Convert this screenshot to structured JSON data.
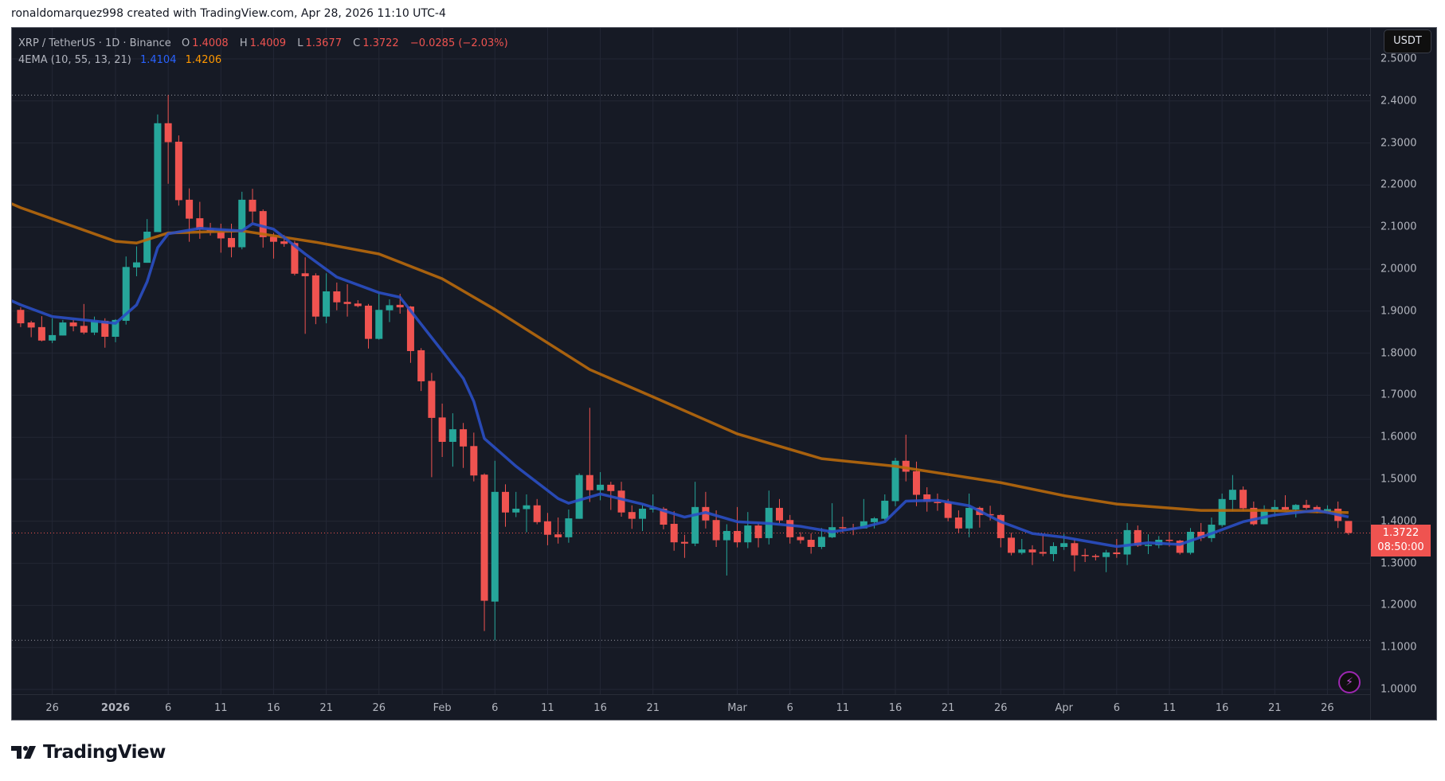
{
  "credit": "ronaldomarquez998 created with TradingView.com, Apr 28, 2026 11:10 UTC-4",
  "legend": {
    "symbol": "XRP / TetherUS · 1D · Binance",
    "o_label": "O",
    "o": "1.4008",
    "h_label": "H",
    "h": "1.4009",
    "l_label": "L",
    "l": "1.3677",
    "c_label": "C",
    "c": "1.3722",
    "change": "−0.0285 (−2.03%)",
    "indicator": "4EMA (10, 55, 13, 21)",
    "ema_fast_value": "1.4104",
    "ema_slow_value": "1.4206"
  },
  "price_axis": {
    "unit": "USDT",
    "ticks": [
      "1.0000",
      "1.1000",
      "1.2000",
      "1.3000",
      "1.4000",
      "1.5000",
      "1.6000",
      "1.7000",
      "1.8000",
      "1.9000",
      "2.0000",
      "2.1000",
      "2.2000",
      "2.3000",
      "2.4000",
      "2.5000"
    ],
    "last_price": "1.3722",
    "countdown": "08:50:00"
  },
  "branding": {
    "logo_text": "TradingView"
  },
  "colors": {
    "up": "#26a69a",
    "down": "#ef5350",
    "ema_fast": "#2a4fc4",
    "ema_slow": "#b8690c",
    "background": "#161a25",
    "grid": "#232735"
  },
  "icons": {
    "alert": "lightning-bolt-icon",
    "logo": "tradingview-logo-icon"
  },
  "chart_data": {
    "type": "candlestick",
    "title": "XRP / TetherUS · 1D · Binance",
    "ylim": [
      0.989,
      2.574
    ],
    "grid": true,
    "x_ticks": [
      {
        "label": "26",
        "date": "2025-12-26"
      },
      {
        "label": "2026",
        "date": "2026-01-01",
        "bold": true
      },
      {
        "label": "6",
        "date": "2026-01-06"
      },
      {
        "label": "11",
        "date": "2026-01-11"
      },
      {
        "label": "16",
        "date": "2026-01-16"
      },
      {
        "label": "21",
        "date": "2026-01-21"
      },
      {
        "label": "26",
        "date": "2026-01-26"
      },
      {
        "label": "Feb",
        "date": "2026-02-01"
      },
      {
        "label": "6",
        "date": "2026-02-06"
      },
      {
        "label": "11",
        "date": "2026-02-11"
      },
      {
        "label": "16",
        "date": "2026-02-16"
      },
      {
        "label": "21",
        "date": "2026-02-21"
      },
      {
        "label": "Mar",
        "date": "2026-03-01"
      },
      {
        "label": "6",
        "date": "2026-03-06"
      },
      {
        "label": "11",
        "date": "2026-03-11"
      },
      {
        "label": "16",
        "date": "2026-03-16"
      },
      {
        "label": "21",
        "date": "2026-03-21"
      },
      {
        "label": "26",
        "date": "2026-03-26"
      },
      {
        "label": "Apr",
        "date": "2026-04-01"
      },
      {
        "label": "6",
        "date": "2026-04-06"
      },
      {
        "label": "11",
        "date": "2026-04-11"
      },
      {
        "label": "16",
        "date": "2026-04-16"
      },
      {
        "label": "21",
        "date": "2026-04-21"
      },
      {
        "label": "26",
        "date": "2026-04-26"
      }
    ],
    "range_high": 2.4139,
    "range_low": 1.117,
    "candles_ohlc": [
      [
        "2025-12-23",
        1.903,
        1.909,
        1.862,
        1.871
      ],
      [
        "2025-12-24",
        1.873,
        1.877,
        1.838,
        1.861
      ],
      [
        "2025-12-25",
        1.862,
        1.888,
        1.828,
        1.83
      ],
      [
        "2025-12-26",
        1.83,
        1.883,
        1.824,
        1.843
      ],
      [
        "2025-12-27",
        1.842,
        1.879,
        1.842,
        1.873
      ],
      [
        "2025-12-28",
        1.873,
        1.879,
        1.852,
        1.864
      ],
      [
        "2025-12-29",
        1.865,
        1.917,
        1.845,
        1.849
      ],
      [
        "2025-12-30",
        1.849,
        1.887,
        1.843,
        1.877
      ],
      [
        "2025-12-31",
        1.877,
        1.883,
        1.813,
        1.839
      ],
      [
        "2026-01-01",
        1.839,
        1.881,
        1.826,
        1.879
      ],
      [
        "2026-01-02",
        1.877,
        2.03,
        1.868,
        2.005
      ],
      [
        "2026-01-03",
        2.004,
        2.054,
        1.983,
        2.016
      ],
      [
        "2026-01-04",
        2.015,
        2.119,
        2.015,
        2.089
      ],
      [
        "2026-01-05",
        2.088,
        2.368,
        2.088,
        2.347
      ],
      [
        "2026-01-06",
        2.347,
        2.414,
        2.203,
        2.302
      ],
      [
        "2026-01-07",
        2.303,
        2.318,
        2.151,
        2.164
      ],
      [
        "2026-01-08",
        2.165,
        2.192,
        2.065,
        2.12
      ],
      [
        "2026-01-09",
        2.121,
        2.16,
        2.072,
        2.094
      ],
      [
        "2026-01-10",
        2.094,
        2.11,
        2.08,
        2.089
      ],
      [
        "2026-01-11",
        2.088,
        2.108,
        2.039,
        2.073
      ],
      [
        "2026-01-12",
        2.074,
        2.108,
        2.028,
        2.052
      ],
      [
        "2026-01-13",
        2.052,
        2.184,
        2.047,
        2.165
      ],
      [
        "2026-01-14",
        2.165,
        2.191,
        2.11,
        2.137
      ],
      [
        "2026-01-15",
        2.138,
        2.142,
        2.051,
        2.076
      ],
      [
        "2026-01-16",
        2.077,
        2.086,
        2.025,
        2.065
      ],
      [
        "2026-01-17",
        2.066,
        2.081,
        2.053,
        2.06
      ],
      [
        "2026-01-18",
        2.062,
        2.067,
        1.985,
        1.989
      ],
      [
        "2026-01-19",
        1.99,
        2.028,
        1.846,
        1.983
      ],
      [
        "2026-01-20",
        1.985,
        1.99,
        1.869,
        1.887
      ],
      [
        "2026-01-21",
        1.887,
        1.99,
        1.871,
        1.947
      ],
      [
        "2026-01-22",
        1.947,
        1.968,
        1.902,
        1.921
      ],
      [
        "2026-01-23",
        1.922,
        1.964,
        1.887,
        1.917
      ],
      [
        "2026-01-24",
        1.918,
        1.926,
        1.909,
        1.912
      ],
      [
        "2026-01-25",
        1.913,
        1.917,
        1.811,
        1.834
      ],
      [
        "2026-01-26",
        1.834,
        1.945,
        1.832,
        1.903
      ],
      [
        "2026-01-27",
        1.902,
        1.928,
        1.874,
        1.914
      ],
      [
        "2026-01-28",
        1.915,
        1.941,
        1.894,
        1.909
      ],
      [
        "2026-01-29",
        1.911,
        1.912,
        1.777,
        1.805
      ],
      [
        "2026-01-30",
        1.807,
        1.812,
        1.71,
        1.733
      ],
      [
        "2026-01-31",
        1.734,
        1.753,
        1.505,
        1.646
      ],
      [
        "2026-02-01",
        1.647,
        1.68,
        1.553,
        1.589
      ],
      [
        "2026-02-02",
        1.589,
        1.657,
        1.53,
        1.619
      ],
      [
        "2026-02-03",
        1.619,
        1.634,
        1.527,
        1.578
      ],
      [
        "2026-02-04",
        1.579,
        1.611,
        1.495,
        1.509
      ],
      [
        "2026-02-05",
        1.511,
        1.514,
        1.139,
        1.211
      ],
      [
        "2026-02-06",
        1.209,
        1.544,
        1.117,
        1.47
      ],
      [
        "2026-02-07",
        1.47,
        1.488,
        1.387,
        1.421
      ],
      [
        "2026-02-08",
        1.421,
        1.47,
        1.41,
        1.43
      ],
      [
        "2026-02-09",
        1.429,
        1.464,
        1.374,
        1.438
      ],
      [
        "2026-02-10",
        1.438,
        1.453,
        1.393,
        1.398
      ],
      [
        "2026-02-11",
        1.4,
        1.42,
        1.343,
        1.368
      ],
      [
        "2026-02-12",
        1.369,
        1.409,
        1.347,
        1.362
      ],
      [
        "2026-02-13",
        1.362,
        1.428,
        1.349,
        1.407
      ],
      [
        "2026-02-14",
        1.406,
        1.514,
        1.406,
        1.51
      ],
      [
        "2026-02-15",
        1.51,
        1.67,
        1.446,
        1.474
      ],
      [
        "2026-02-16",
        1.474,
        1.517,
        1.45,
        1.487
      ],
      [
        "2026-02-17",
        1.487,
        1.494,
        1.427,
        1.472
      ],
      [
        "2026-02-18",
        1.473,
        1.494,
        1.411,
        1.421
      ],
      [
        "2026-02-19",
        1.422,
        1.438,
        1.382,
        1.406
      ],
      [
        "2026-02-20",
        1.406,
        1.439,
        1.377,
        1.43
      ],
      [
        "2026-02-21",
        1.429,
        1.464,
        1.421,
        1.431
      ],
      [
        "2026-02-22",
        1.43,
        1.434,
        1.381,
        1.392
      ],
      [
        "2026-02-23",
        1.394,
        1.424,
        1.33,
        1.35
      ],
      [
        "2026-02-24",
        1.351,
        1.368,
        1.313,
        1.347
      ],
      [
        "2026-02-25",
        1.347,
        1.494,
        1.341,
        1.434
      ],
      [
        "2026-02-26",
        1.434,
        1.47,
        1.383,
        1.402
      ],
      [
        "2026-02-27",
        1.403,
        1.426,
        1.339,
        1.355
      ],
      [
        "2026-02-28",
        1.355,
        1.393,
        1.271,
        1.377
      ],
      [
        "2026-03-01",
        1.377,
        1.434,
        1.338,
        1.35
      ],
      [
        "2026-03-02",
        1.35,
        1.422,
        1.336,
        1.39
      ],
      [
        "2026-03-03",
        1.39,
        1.396,
        1.338,
        1.36
      ],
      [
        "2026-03-04",
        1.36,
        1.473,
        1.345,
        1.432
      ],
      [
        "2026-03-05",
        1.432,
        1.453,
        1.396,
        1.402
      ],
      [
        "2026-03-06",
        1.403,
        1.415,
        1.347,
        1.362
      ],
      [
        "2026-03-07",
        1.363,
        1.374,
        1.347,
        1.355
      ],
      [
        "2026-03-08",
        1.356,
        1.371,
        1.323,
        1.339
      ],
      [
        "2026-03-09",
        1.339,
        1.384,
        1.334,
        1.363
      ],
      [
        "2026-03-10",
        1.362,
        1.443,
        1.36,
        1.386
      ],
      [
        "2026-03-11",
        1.386,
        1.411,
        1.372,
        1.384
      ],
      [
        "2026-03-12",
        1.384,
        1.394,
        1.367,
        1.383
      ],
      [
        "2026-03-13",
        1.383,
        1.453,
        1.383,
        1.4
      ],
      [
        "2026-03-14",
        1.398,
        1.41,
        1.383,
        1.407
      ],
      [
        "2026-03-15",
        1.406,
        1.464,
        1.402,
        1.449
      ],
      [
        "2026-03-16",
        1.448,
        1.551,
        1.436,
        1.544
      ],
      [
        "2026-03-17",
        1.544,
        1.606,
        1.495,
        1.518
      ],
      [
        "2026-03-18",
        1.519,
        1.542,
        1.436,
        1.463
      ],
      [
        "2026-03-19",
        1.464,
        1.481,
        1.423,
        1.446
      ],
      [
        "2026-03-20",
        1.446,
        1.466,
        1.425,
        1.444
      ],
      [
        "2026-03-21",
        1.445,
        1.453,
        1.4,
        1.408
      ],
      [
        "2026-03-22",
        1.409,
        1.426,
        1.372,
        1.383
      ],
      [
        "2026-03-23",
        1.383,
        1.466,
        1.362,
        1.432
      ],
      [
        "2026-03-24",
        1.432,
        1.435,
        1.385,
        1.415
      ],
      [
        "2026-03-25",
        1.417,
        1.437,
        1.402,
        1.415
      ],
      [
        "2026-03-26",
        1.415,
        1.417,
        1.338,
        1.36
      ],
      [
        "2026-03-27",
        1.361,
        1.373,
        1.319,
        1.325
      ],
      [
        "2026-03-28",
        1.325,
        1.358,
        1.321,
        1.333
      ],
      [
        "2026-03-29",
        1.333,
        1.343,
        1.296,
        1.326
      ],
      [
        "2026-03-30",
        1.327,
        1.368,
        1.317,
        1.323
      ],
      [
        "2026-03-31",
        1.322,
        1.35,
        1.305,
        1.341
      ],
      [
        "2026-04-01",
        1.339,
        1.37,
        1.332,
        1.348
      ],
      [
        "2026-04-02",
        1.348,
        1.358,
        1.281,
        1.319
      ],
      [
        "2026-04-03",
        1.32,
        1.335,
        1.303,
        1.319
      ],
      [
        "2026-04-04",
        1.318,
        1.322,
        1.307,
        1.315
      ],
      [
        "2026-04-05",
        1.315,
        1.332,
        1.279,
        1.326
      ],
      [
        "2026-04-06",
        1.326,
        1.358,
        1.313,
        1.322
      ],
      [
        "2026-04-07",
        1.321,
        1.396,
        1.296,
        1.379
      ],
      [
        "2026-04-08",
        1.379,
        1.39,
        1.339,
        1.342
      ],
      [
        "2026-04-09",
        1.343,
        1.369,
        1.322,
        1.344
      ],
      [
        "2026-04-10",
        1.343,
        1.365,
        1.336,
        1.356
      ],
      [
        "2026-04-11",
        1.356,
        1.375,
        1.34,
        1.355
      ],
      [
        "2026-04-12",
        1.354,
        1.356,
        1.321,
        1.325
      ],
      [
        "2026-04-13",
        1.325,
        1.384,
        1.321,
        1.375
      ],
      [
        "2026-04-14",
        1.375,
        1.396,
        1.353,
        1.36
      ],
      [
        "2026-04-15",
        1.36,
        1.409,
        1.351,
        1.392
      ],
      [
        "2026-04-16",
        1.391,
        1.466,
        1.387,
        1.453
      ],
      [
        "2026-04-17",
        1.451,
        1.51,
        1.424,
        1.475
      ],
      [
        "2026-04-18",
        1.475,
        1.483,
        1.425,
        1.431
      ],
      [
        "2026-04-19",
        1.432,
        1.447,
        1.39,
        1.393
      ],
      [
        "2026-04-20",
        1.393,
        1.438,
        1.393,
        1.424
      ],
      [
        "2026-04-21",
        1.423,
        1.451,
        1.411,
        1.434
      ],
      [
        "2026-04-22",
        1.434,
        1.462,
        1.426,
        1.428
      ],
      [
        "2026-04-23",
        1.428,
        1.441,
        1.409,
        1.439
      ],
      [
        "2026-04-24",
        1.439,
        1.451,
        1.428,
        1.432
      ],
      [
        "2026-04-25",
        1.434,
        1.438,
        1.419,
        1.424
      ],
      [
        "2026-04-26",
        1.423,
        1.438,
        1.42,
        1.429
      ],
      [
        "2026-04-27",
        1.43,
        1.447,
        1.384,
        1.4008
      ],
      [
        "2026-04-28",
        1.4008,
        1.4009,
        1.3677,
        1.3722
      ]
    ],
    "ema_fast": [
      [
        "2025-12-22",
        1.926
      ],
      [
        "2025-12-23",
        1.915
      ],
      [
        "2025-12-26",
        1.887
      ],
      [
        "2026-01-01",
        1.871
      ],
      [
        "2026-01-03",
        1.915
      ],
      [
        "2026-01-04",
        1.97
      ],
      [
        "2026-01-05",
        2.051
      ],
      [
        "2026-01-06",
        2.084
      ],
      [
        "2026-01-09",
        2.097
      ],
      [
        "2026-01-13",
        2.091
      ],
      [
        "2026-01-14",
        2.108
      ],
      [
        "2026-01-16",
        2.095
      ],
      [
        "2026-01-19",
        2.036
      ],
      [
        "2026-01-22",
        1.981
      ],
      [
        "2026-01-26",
        1.944
      ],
      [
        "2026-01-28",
        1.933
      ],
      [
        "2026-02-01",
        1.805
      ],
      [
        "2026-02-03",
        1.74
      ],
      [
        "2026-02-04",
        1.685
      ],
      [
        "2026-02-05",
        1.597
      ],
      [
        "2026-02-08",
        1.531
      ],
      [
        "2026-02-12",
        1.454
      ],
      [
        "2026-02-13",
        1.443
      ],
      [
        "2026-02-16",
        1.465
      ],
      [
        "2026-02-20",
        1.441
      ],
      [
        "2026-02-24",
        1.41
      ],
      [
        "2026-02-26",
        1.421
      ],
      [
        "2026-03-01",
        1.399
      ],
      [
        "2026-03-04",
        1.395
      ],
      [
        "2026-03-07",
        1.388
      ],
      [
        "2026-03-10",
        1.375
      ],
      [
        "2026-03-13",
        1.386
      ],
      [
        "2026-03-15",
        1.399
      ],
      [
        "2026-03-17",
        1.448
      ],
      [
        "2026-03-20",
        1.45
      ],
      [
        "2026-03-23",
        1.437
      ],
      [
        "2026-03-26",
        1.399
      ],
      [
        "2026-03-29",
        1.371
      ],
      [
        "2026-04-01",
        1.362
      ],
      [
        "2026-04-06",
        1.34
      ],
      [
        "2026-04-09",
        1.349
      ],
      [
        "2026-04-12",
        1.345
      ],
      [
        "2026-04-15",
        1.371
      ],
      [
        "2026-04-18",
        1.399
      ],
      [
        "2026-04-21",
        1.415
      ],
      [
        "2026-04-25",
        1.426
      ],
      [
        "2026-04-28",
        1.4104
      ]
    ],
    "ema_slow": [
      [
        "2025-12-22",
        2.157
      ],
      [
        "2025-12-23",
        2.146
      ],
      [
        "2026-01-01",
        2.066
      ],
      [
        "2026-01-03",
        2.062
      ],
      [
        "2026-01-06",
        2.086
      ],
      [
        "2026-01-13",
        2.091
      ],
      [
        "2026-01-20",
        2.064
      ],
      [
        "2026-01-26",
        2.036
      ],
      [
        "2026-02-01",
        1.977
      ],
      [
        "2026-02-06",
        1.904
      ],
      [
        "2026-02-15",
        1.761
      ],
      [
        "2026-02-21",
        1.696
      ],
      [
        "2026-03-01",
        1.608
      ],
      [
        "2026-03-09",
        1.549
      ],
      [
        "2026-03-16",
        1.531
      ],
      [
        "2026-03-26",
        1.492
      ],
      [
        "2026-04-01",
        1.461
      ],
      [
        "2026-04-06",
        1.441
      ],
      [
        "2026-04-14",
        1.426
      ],
      [
        "2026-04-20",
        1.426
      ],
      [
        "2026-04-28",
        1.4206
      ]
    ]
  }
}
